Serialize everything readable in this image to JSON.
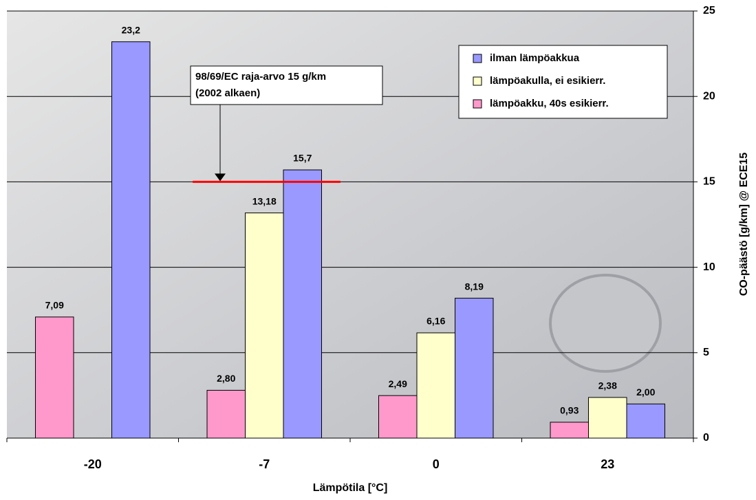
{
  "chart_data": {
    "type": "bar",
    "x_label": "Lämpötila [°C]",
    "y_label": "CO-päästö [g/km] @ ECE15",
    "categories": [
      "-20",
      "-7",
      "0",
      "23"
    ],
    "series": [
      {
        "name": "lämpöakku, 40s esikierr.",
        "color": "#ff99cc",
        "values": [
          7.09,
          2.8,
          2.49,
          0.93
        ],
        "value_labels": [
          "7,09",
          "2,80",
          "2,49",
          "0,93"
        ]
      },
      {
        "name": "lämpöakulla, ei esikierr.",
        "color": "#ffffcc",
        "values": [
          null,
          13.18,
          6.16,
          2.38
        ],
        "value_labels": [
          null,
          "13,18",
          "6,16",
          "2,38"
        ]
      },
      {
        "name": "ilman lämpöakkua",
        "color": "#9999ff",
        "values": [
          23.2,
          15.7,
          8.19,
          2.0
        ],
        "value_labels": [
          "23,2",
          "15,7",
          "8,19",
          "2,00"
        ]
      }
    ],
    "ylim": [
      0,
      25
    ],
    "yticks": [
      0,
      5,
      10,
      15,
      20,
      25
    ],
    "grid": true,
    "annotation": {
      "lines": [
        "98/69/EC raja-arvo 15 g/km",
        "(2002 alkaen)"
      ],
      "value": 15,
      "color": "#ff0000"
    }
  }
}
